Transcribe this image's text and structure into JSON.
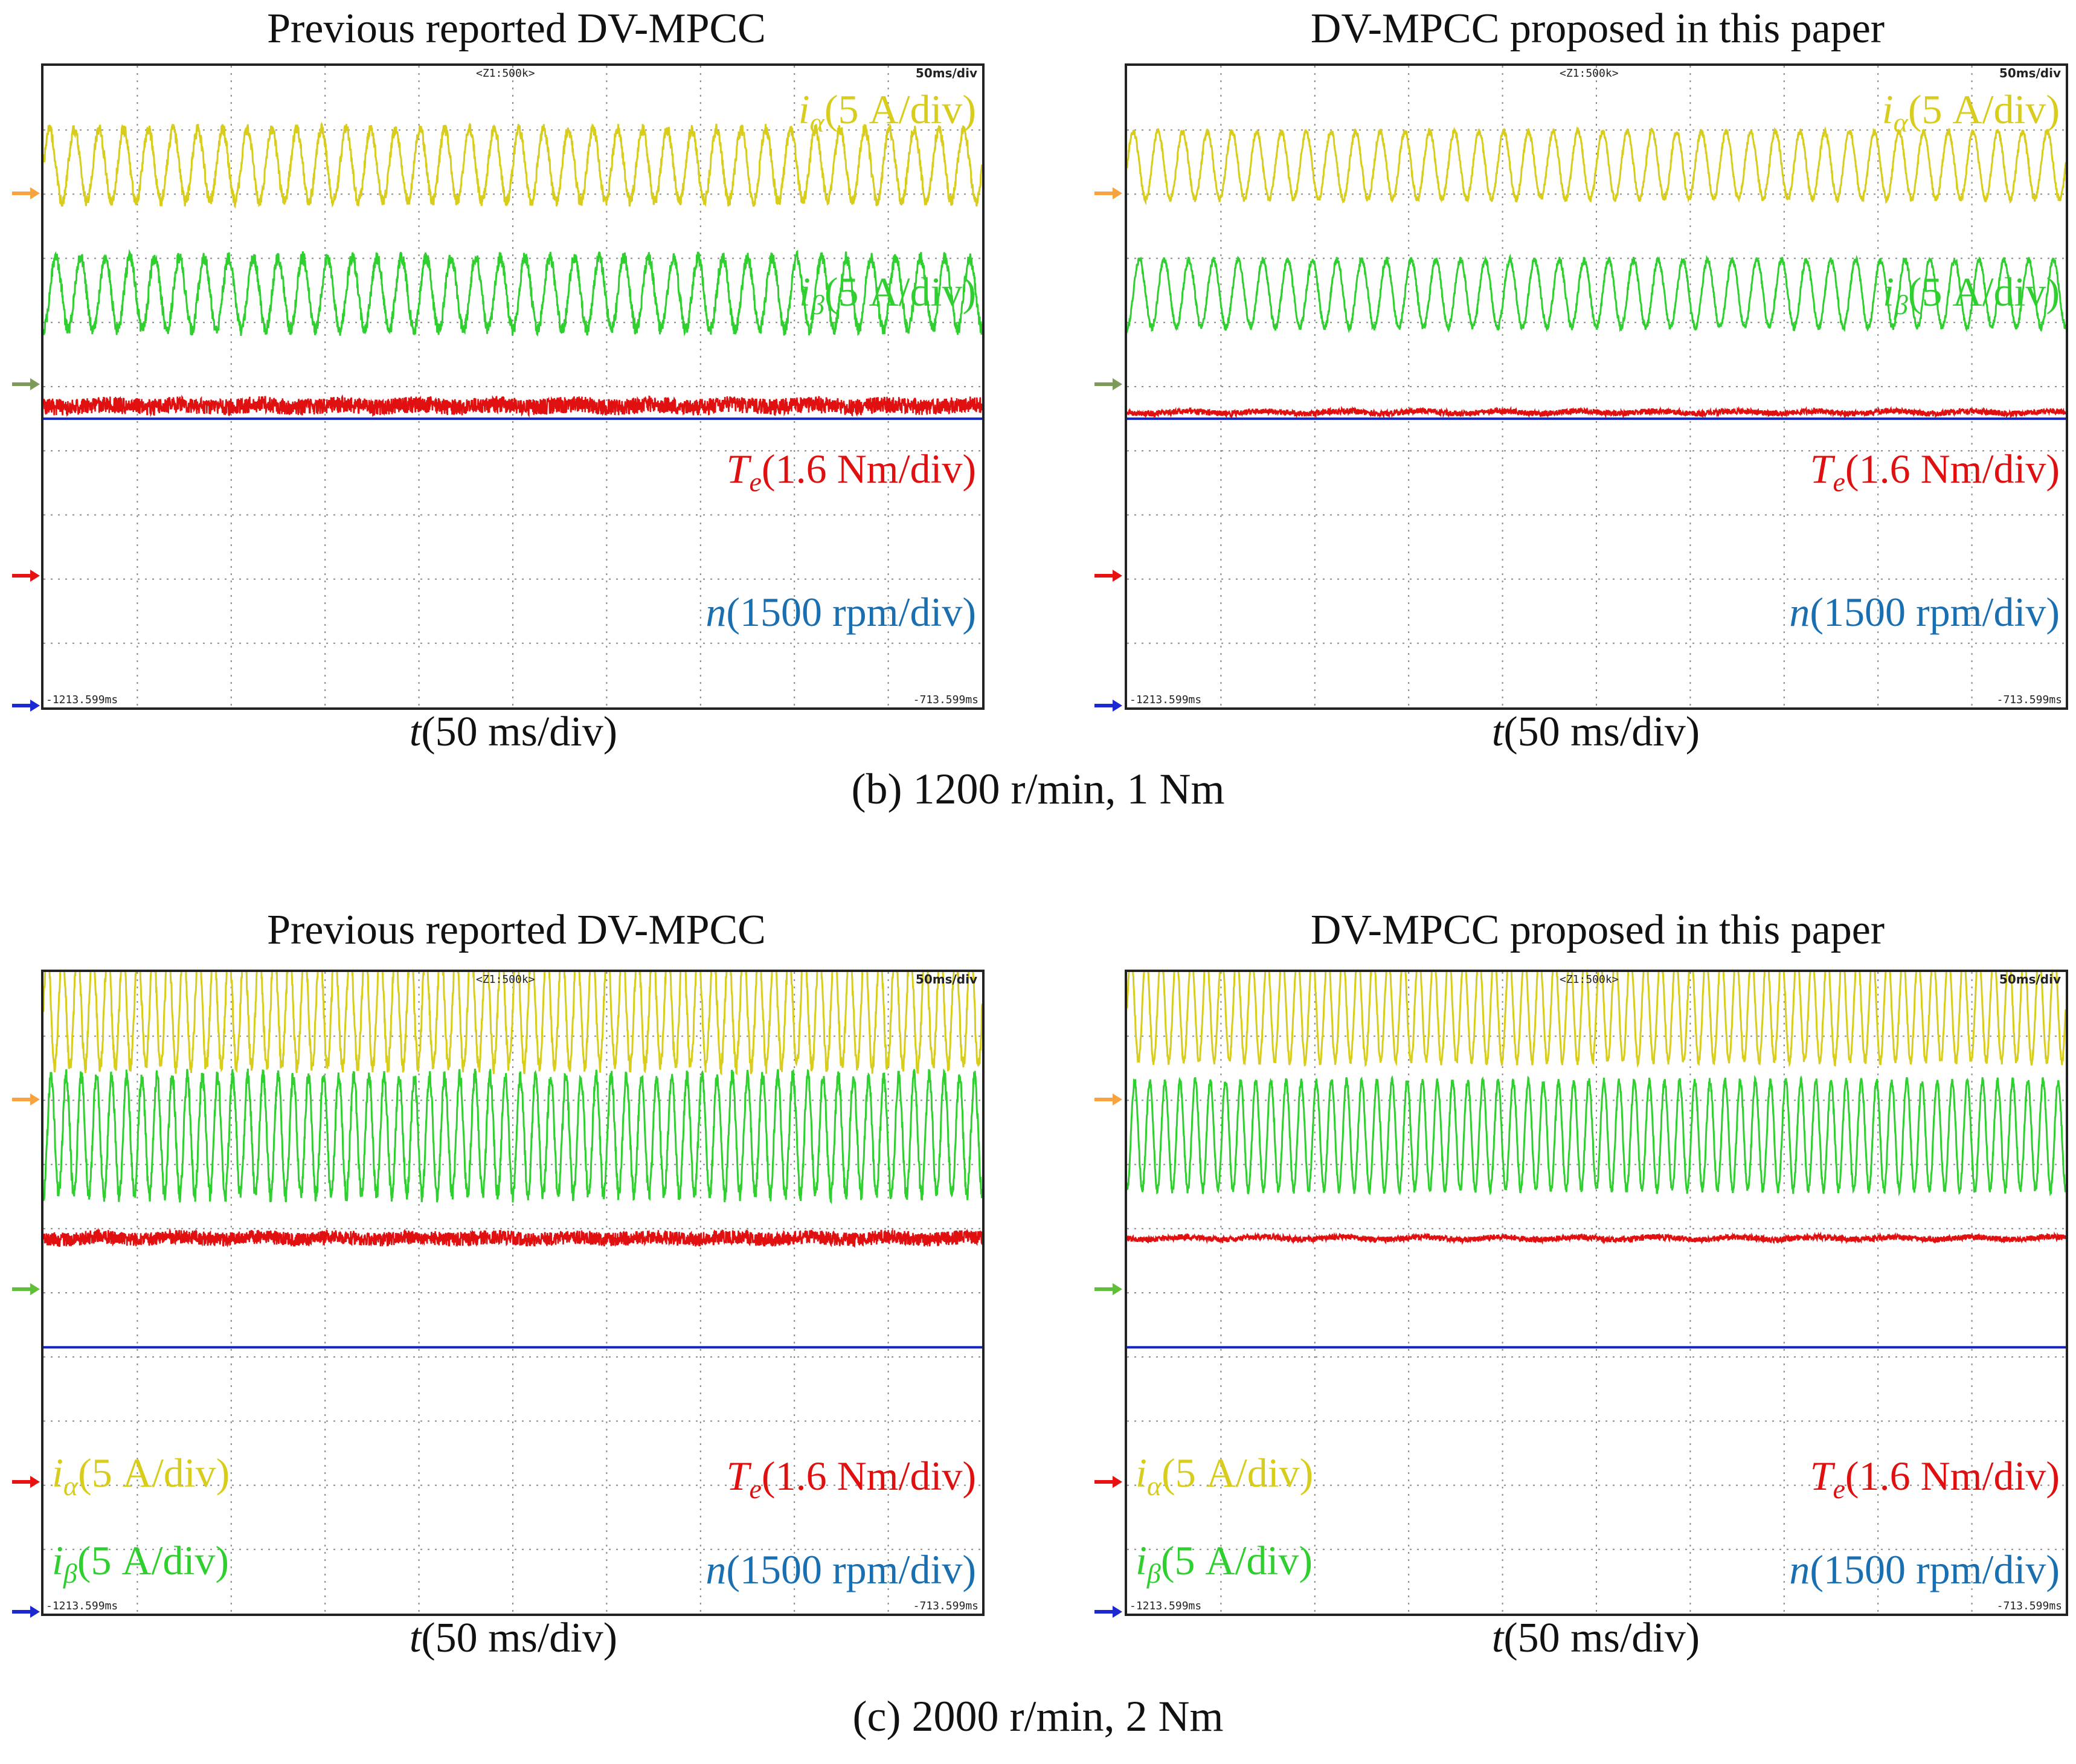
{
  "chart_data": [
    {
      "type": "line",
      "title": "Previous reported DV-MPCC",
      "xlabel": "t(50 ms/div)",
      "scope": {
        "zoom": "<Z1:500k>",
        "timebase": "50ms/div",
        "t_start": "-1213.599ms",
        "t_end": "-713.599ms"
      },
      "series": [
        {
          "name": "i_alpha",
          "label": "(5 A/div)",
          "symbol": "i",
          "subscript": "α",
          "color": "#d8cc1c",
          "cycles": 38,
          "amplitude_div": 1.12,
          "ripple_div": 0.09,
          "offset_div": -3.45
        },
        {
          "name": "i_beta",
          "label": "(5 A/div)",
          "symbol": "i",
          "subscript": "β",
          "color": "#2fcf2f",
          "cycles": 38,
          "amplitude_div": 1.12,
          "ripple_div": 0.1,
          "offset_div": -1.45
        },
        {
          "name": "T_e",
          "label": "(1.6 Nm/div)",
          "symbol": "T",
          "subscript": "e",
          "color": "#e01010",
          "noise_div": 0.26,
          "offset_div": 0.3
        },
        {
          "name": "n",
          "label": "(1500 rpm/div)",
          "symbol": "n",
          "subscript": "",
          "color": "#1226c8",
          "offset_div": 0.5
        }
      ]
    },
    {
      "type": "line",
      "title": "DV-MPCC proposed in this paper",
      "xlabel": "t(50 ms/div)",
      "scope": {
        "zoom": "<Z1:500k>",
        "timebase": "50ms/div",
        "t_start": "-1213.599ms",
        "t_end": "-713.599ms"
      },
      "series": [
        {
          "name": "i_alpha",
          "label": "(5 A/div)",
          "symbol": "i",
          "subscript": "α",
          "color": "#d8cc1c",
          "cycles": 38,
          "amplitude_div": 1.05,
          "ripple_div": 0.05,
          "offset_div": -3.45
        },
        {
          "name": "i_beta",
          "label": "(5 A/div)",
          "symbol": "i",
          "subscript": "β",
          "color": "#2fcf2f",
          "cycles": 38,
          "amplitude_div": 1.05,
          "ripple_div": 0.05,
          "offset_div": -1.45
        },
        {
          "name": "T_e",
          "label": "(1.6 Nm/div)",
          "symbol": "T",
          "subscript": "e",
          "color": "#e01010",
          "noise_div": 0.09,
          "offset_div": 0.4
        },
        {
          "name": "n",
          "label": "(1500 rpm/div)",
          "symbol": "n",
          "subscript": "",
          "color": "#1226c8",
          "offset_div": 0.5
        }
      ]
    },
    {
      "type": "line",
      "title": "Previous reported DV-MPCC",
      "xlabel": "t(50 ms/div)",
      "scope": {
        "zoom": "<Z1:500k>",
        "timebase": "50ms/div",
        "t_start": "-1213.599ms",
        "t_end": "-713.599ms"
      },
      "series": [
        {
          "name": "i_alpha",
          "label": "(5 A/div)",
          "symbol": "i",
          "subscript": "α",
          "color": "#d8cc1c",
          "cycles": 62,
          "amplitude_div": 1.85,
          "ripple_div": 0.12,
          "offset_div": -4.45
        },
        {
          "name": "i_beta",
          "label": "(5 A/div)",
          "symbol": "i",
          "subscript": "β",
          "color": "#2fcf2f",
          "cycles": 62,
          "amplitude_div": 1.85,
          "ripple_div": 0.12,
          "offset_div": -2.45
        },
        {
          "name": "T_e",
          "label": "(1.6 Nm/div)",
          "symbol": "T",
          "subscript": "e",
          "color": "#e01010",
          "noise_div": 0.22,
          "offset_div": -0.85
        },
        {
          "name": "n",
          "label": "(1500 rpm/div)",
          "symbol": "n",
          "subscript": "",
          "color": "#1226c8",
          "offset_div": 0.85
        }
      ]
    },
    {
      "type": "line",
      "title": "DV-MPCC proposed in this paper",
      "xlabel": "t(50 ms/div)",
      "scope": {
        "zoom": "<Z1:500k>",
        "timebase": "50ms/div",
        "t_start": "-1213.599ms",
        "t_end": "-713.599ms"
      },
      "series": [
        {
          "name": "i_alpha",
          "label": "(5 A/div)",
          "symbol": "i",
          "subscript": "α",
          "color": "#d8cc1c",
          "cycles": 62,
          "amplitude_div": 1.7,
          "ripple_div": 0.06,
          "offset_div": -4.45
        },
        {
          "name": "i_beta",
          "label": "(5 A/div)",
          "symbol": "i",
          "subscript": "β",
          "color": "#2fcf2f",
          "cycles": 62,
          "amplitude_div": 1.7,
          "ripple_div": 0.06,
          "offset_div": -2.45
        },
        {
          "name": "T_e",
          "label": "(1.6 Nm/div)",
          "symbol": "T",
          "subscript": "e",
          "color": "#e01010",
          "noise_div": 0.09,
          "offset_div": -0.85
        },
        {
          "name": "n",
          "label": "(1500 rpm/div)",
          "symbol": "n",
          "subscript": "",
          "color": "#1226c8",
          "offset_div": 0.85
        }
      ]
    }
  ],
  "captions": {
    "b": "(b) 1200 r/min, 1 Nm",
    "c": "(c) 2000 r/min, 2 Nm"
  },
  "marker_colors": {
    "ch1": "#f6a340",
    "ch2": "#7e9a58",
    "ch3": "#e81010",
    "ch4": "#1a2ad0",
    "ch2_bottom": "#5fbf3c"
  }
}
